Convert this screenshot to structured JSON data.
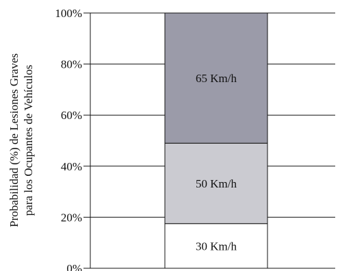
{
  "chart_data": {
    "type": "bar",
    "stacked": true,
    "categories": [
      ""
    ],
    "series": [
      {
        "name": "30 Km/h",
        "values": [
          17.5
        ],
        "color": "#ffffff"
      },
      {
        "name": "50 Km/h",
        "values": [
          31.5
        ],
        "color": "#cbcbd1"
      },
      {
        "name": "65 Km/h",
        "values": [
          51
        ],
        "color": "#9b9ba9"
      }
    ],
    "ylabel_line1": "Probabilidad (%) de Lesiones Graves",
    "ylabel_line2": "para los Ocupantes de Vehículos",
    "xlabel": "",
    "title": "",
    "ylim": [
      0,
      100
    ],
    "yticks": [
      0,
      20,
      40,
      60,
      80,
      100
    ],
    "ytick_labels": [
      "0%",
      "20%",
      "40%",
      "60%",
      "80%",
      "100%"
    ],
    "grid": true,
    "legend": "none; segment labels printed inside bar"
  }
}
